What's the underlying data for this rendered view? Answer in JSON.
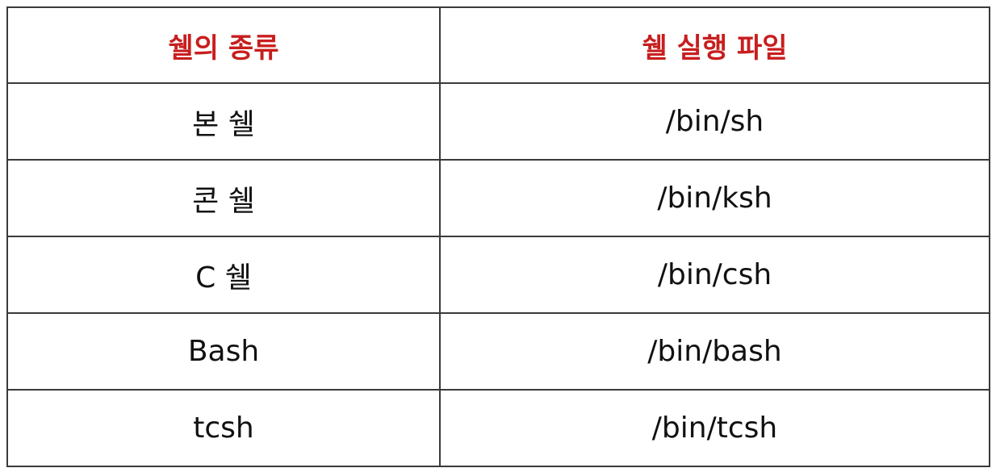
{
  "table": {
    "headers": [
      "쉘의 종류",
      "쉘 실행 파일"
    ],
    "rows": [
      [
        "본 쉘",
        "/bin/sh"
      ],
      [
        "콘 쉘",
        "/bin/ksh"
      ],
      [
        "C 쉘",
        "/bin/csh"
      ],
      [
        "Bash",
        "/bin/bash"
      ],
      [
        "tcsh",
        "/bin/tcsh"
      ]
    ],
    "header_color": "#c81e1e",
    "border_color": "#3a3a3a"
  }
}
